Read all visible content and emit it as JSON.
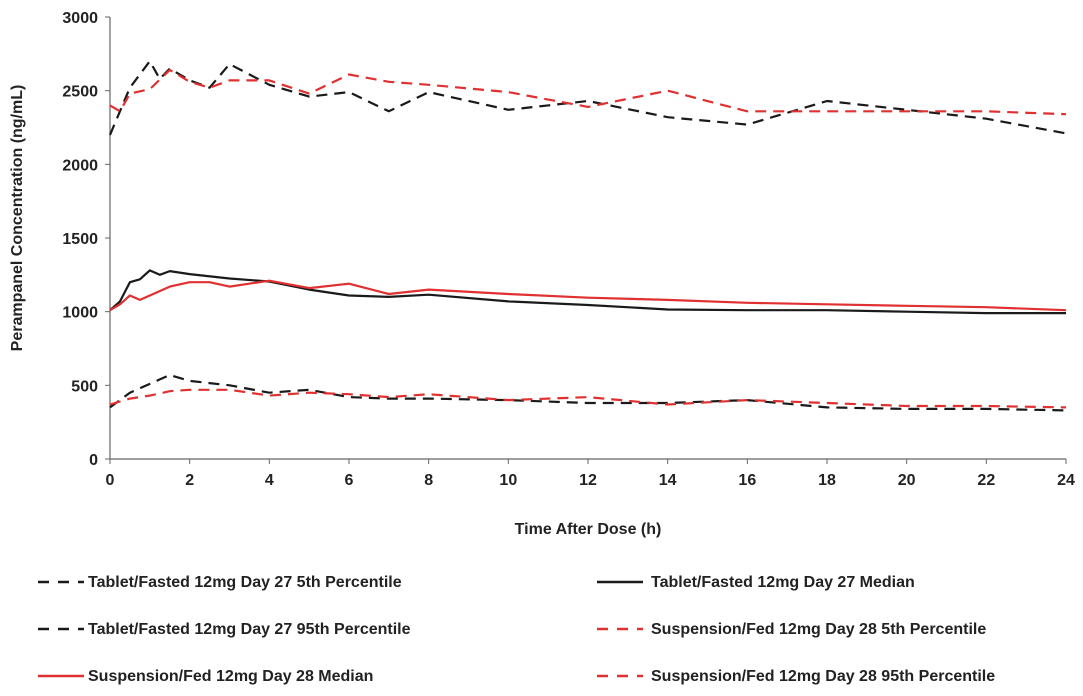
{
  "chart_data": {
    "type": "line",
    "xlabel": "Time After Dose (h)",
    "ylabel": "Perampanel Concentration (ng/mL)",
    "xlim": [
      0,
      24
    ],
    "ylim": [
      0,
      3000
    ],
    "x_ticks": [
      "0",
      "2",
      "4",
      "6",
      "8",
      "10",
      "12",
      "14",
      "16",
      "18",
      "20",
      "22",
      "24"
    ],
    "y_ticks": [
      "0",
      "500",
      "1000",
      "1500",
      "2000",
      "2500",
      "3000"
    ],
    "grid": false,
    "legend_position": "bottom",
    "series": [
      {
        "name": "Tablet/Fasted 12mg Day 27 5th Percentile",
        "color": "#1a1a1a",
        "style": "dashed",
        "x": [
          0,
          0.5,
          1,
          1.25,
          1.5,
          2,
          3,
          4,
          5,
          6,
          7,
          8,
          10,
          12,
          14,
          16,
          18,
          20,
          22,
          24
        ],
        "y": [
          350,
          450,
          510,
          540,
          570,
          530,
          500,
          450,
          470,
          420,
          410,
          410,
          400,
          380,
          380,
          400,
          350,
          340,
          340,
          330
        ]
      },
      {
        "name": "Tablet/Fasted 12mg Day 27 Median",
        "color": "#1a1a1a",
        "style": "solid",
        "x": [
          0,
          0.25,
          0.5,
          0.75,
          1,
          1.25,
          1.5,
          2,
          3,
          4,
          5,
          6,
          7,
          8,
          10,
          12,
          14,
          16,
          18,
          20,
          22,
          24
        ],
        "y": [
          1010,
          1070,
          1200,
          1220,
          1280,
          1250,
          1275,
          1255,
          1225,
          1205,
          1150,
          1110,
          1100,
          1115,
          1070,
          1045,
          1015,
          1010,
          1010,
          1000,
          990,
          990
        ]
      },
      {
        "name": "Tablet/Fasted 12mg Day 27 95th Percentile",
        "color": "#1a1a1a",
        "style": "dashed",
        "x": [
          0,
          0.5,
          1,
          1.25,
          1.5,
          2,
          2.5,
          3,
          4,
          5,
          6,
          7,
          8,
          10,
          12,
          14,
          16,
          18,
          20,
          22,
          24
        ],
        "y": [
          2200,
          2520,
          2700,
          2580,
          2650,
          2570,
          2520,
          2680,
          2540,
          2460,
          2490,
          2360,
          2490,
          2370,
          2430,
          2320,
          2270,
          2430,
          2370,
          2310,
          2210
        ]
      },
      {
        "name": "Suspension/Fed 12mg Day 28 5th Percentile",
        "color": "#e03030",
        "style": "dashed",
        "x": [
          0,
          0.5,
          1,
          1.5,
          2,
          3,
          4,
          5,
          6,
          7,
          8,
          10,
          12,
          14,
          16,
          18,
          20,
          22,
          24
        ],
        "y": [
          370,
          410,
          430,
          460,
          470,
          470,
          430,
          450,
          440,
          420,
          440,
          400,
          420,
          370,
          400,
          380,
          360,
          360,
          350
        ]
      },
      {
        "name": "Suspension/Fed 12mg Day 28 Median",
        "color": "#e03030",
        "style": "solid",
        "x": [
          0,
          0.25,
          0.5,
          0.75,
          1,
          1.5,
          2,
          2.5,
          3,
          4,
          5,
          6,
          7,
          8,
          10,
          12,
          14,
          16,
          18,
          20,
          22,
          24
        ],
        "y": [
          1010,
          1050,
          1110,
          1080,
          1110,
          1170,
          1200,
          1200,
          1170,
          1210,
          1160,
          1190,
          1120,
          1150,
          1120,
          1095,
          1080,
          1060,
          1050,
          1040,
          1030,
          1010
        ]
      },
      {
        "name": "Suspension/Fed 12mg Day 28 95th Percentile",
        "color": "#e03030",
        "style": "dashed",
        "x": [
          0,
          0.25,
          0.5,
          1,
          1.5,
          2,
          2.5,
          3,
          4,
          5,
          6,
          7,
          8,
          10,
          12,
          14,
          16,
          18,
          20,
          22,
          24
        ],
        "y": [
          2400,
          2360,
          2480,
          2510,
          2640,
          2560,
          2520,
          2570,
          2570,
          2480,
          2610,
          2560,
          2540,
          2490,
          2390,
          2500,
          2360,
          2360,
          2360,
          2360,
          2340
        ]
      }
    ]
  }
}
